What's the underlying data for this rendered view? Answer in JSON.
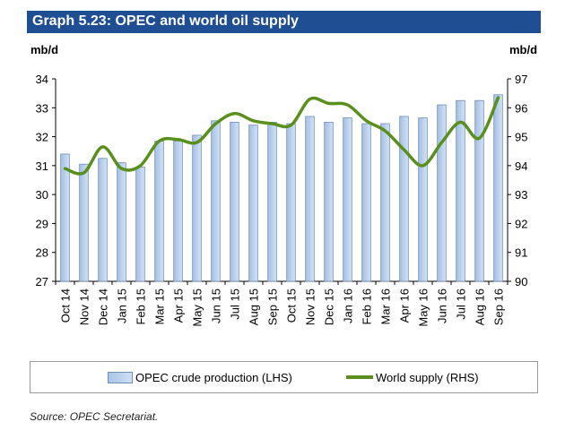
{
  "chart_data": {
    "type": "bar+line",
    "title": "Graph 5.23: OPEC and world oil supply",
    "unit_left": "mb/d",
    "unit_right": "mb/d",
    "categories": [
      "Oct 14",
      "Nov 14",
      "Dec 14",
      "Jan 15",
      "Feb 15",
      "Mar 15",
      "Apr 15",
      "May 15",
      "Jun 15",
      "Jul 15",
      "Aug 15",
      "Sep 15",
      "Oct 15",
      "Nov 15",
      "Dec 15",
      "Jan 16",
      "Feb 16",
      "Mar 16",
      "Apr 16",
      "May 16",
      "Jun 16",
      "Jul 16",
      "Aug 16",
      "Sep 16"
    ],
    "y_left": {
      "min": 27,
      "max": 34,
      "ticks": [
        27,
        28,
        29,
        30,
        31,
        32,
        33,
        34
      ]
    },
    "y_right": {
      "min": 90,
      "max": 97,
      "ticks": [
        90,
        91,
        92,
        93,
        94,
        95,
        96,
        97
      ]
    },
    "series": [
      {
        "name": "OPEC crude production (LHS)",
        "type": "bar",
        "axis": "left",
        "color": "#b8d0ee",
        "values": [
          31.4,
          31.05,
          31.25,
          31.1,
          30.95,
          31.85,
          31.85,
          32.05,
          32.55,
          32.5,
          32.4,
          32.5,
          32.45,
          32.7,
          32.5,
          32.65,
          32.45,
          32.45,
          32.7,
          32.65,
          33.1,
          33.25,
          33.25,
          33.45
        ]
      },
      {
        "name": "World supply (RHS)",
        "type": "line",
        "axis": "right",
        "color": "#5a8f1e",
        "values": [
          93.9,
          93.75,
          94.65,
          93.9,
          94.0,
          94.85,
          94.9,
          94.8,
          95.45,
          95.8,
          95.55,
          95.45,
          95.4,
          96.3,
          96.15,
          96.1,
          95.55,
          95.2,
          94.55,
          94.0,
          94.8,
          95.5,
          94.95,
          96.35
        ]
      }
    ],
    "legend": {
      "position": "bottom",
      "entries": [
        "OPEC crude production (LHS)",
        "World supply (RHS)"
      ]
    },
    "source": "Source: OPEC Secretariat."
  }
}
